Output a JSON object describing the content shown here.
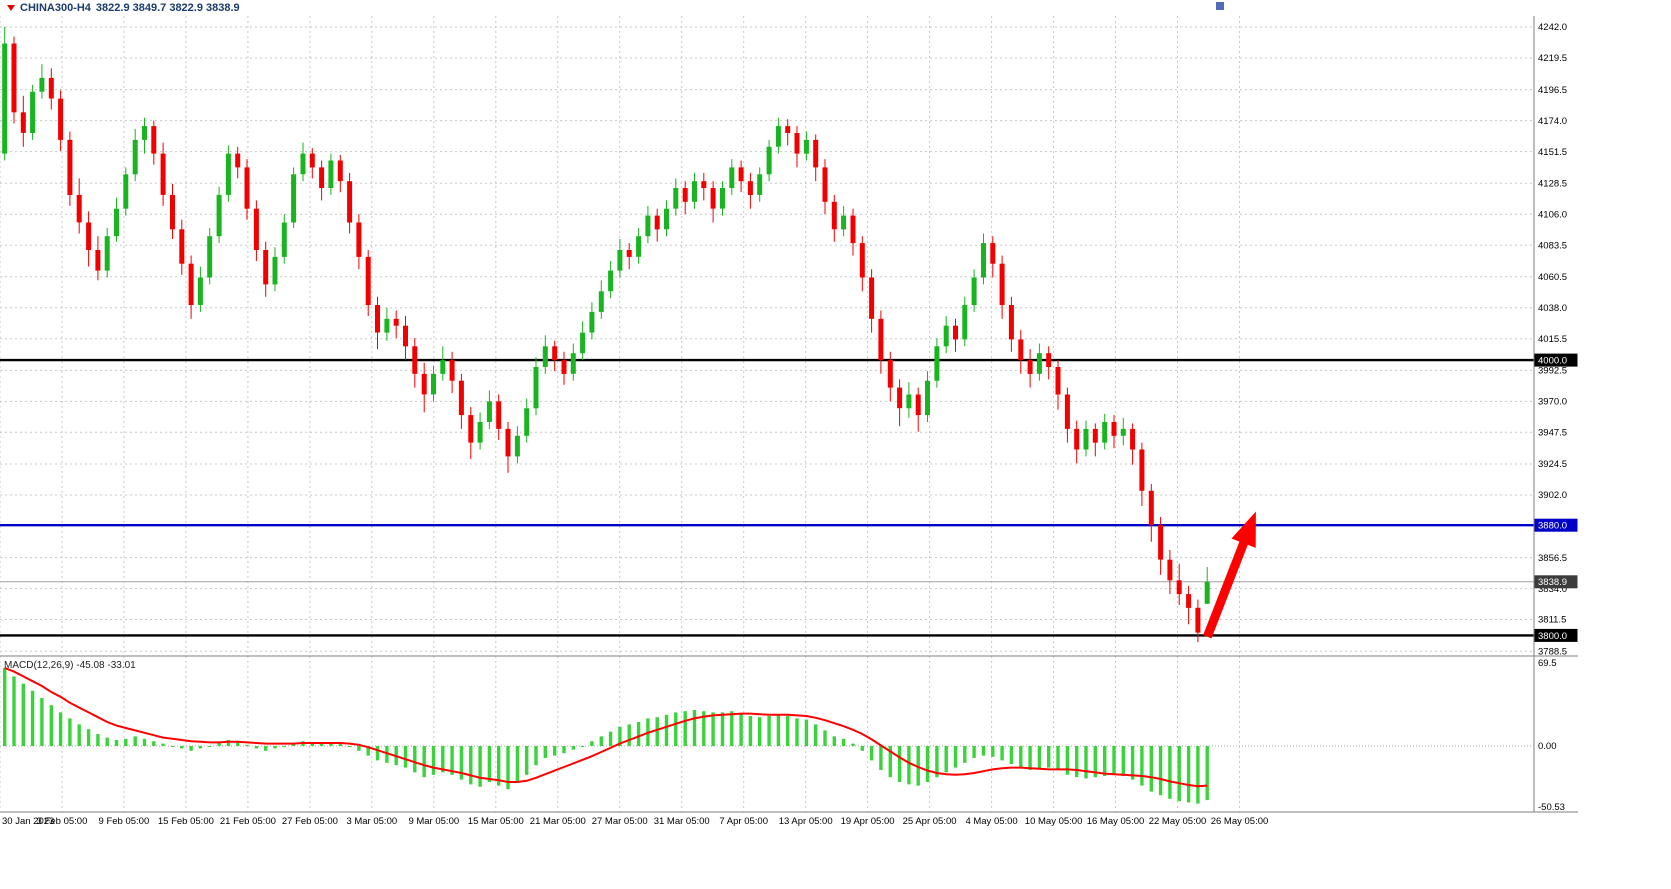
{
  "window": {
    "symbol_period": "CHINA300-H4",
    "ohlc_text": "3822.9 3849.7 3822.9 3838.9"
  },
  "chart_data": {
    "type": "candlestick",
    "title": "CHINA300-H4",
    "timeframe": "H4",
    "current_bar": {
      "open": 3822.9,
      "high": 3849.7,
      "low": 3822.9,
      "close": 3838.9
    },
    "layout_hints": {
      "grid": "dashed",
      "candle_area_frac": 0.79,
      "time_axis_frac": 0.808,
      "legend": "none"
    },
    "colors": {
      "up": "#18b520",
      "down": "#f20000",
      "grid": "#c8c8c8",
      "separator": "#7f7f7f",
      "hist": "#3bd33b",
      "signal": "#ff0000",
      "axis_text": "#000000",
      "badge_text": "#ffffff",
      "support_resistance": "#000000",
      "target_line": "#0000c8",
      "arrow": "#ff0000"
    },
    "price_axis": {
      "view_max": 4250,
      "view_min": 3785,
      "ticks": [
        4242.0,
        4219.5,
        4196.5,
        4174.0,
        4151.5,
        4128.5,
        4106.0,
        4083.5,
        4060.5,
        4038.0,
        4015.5,
        3992.5,
        3970.0,
        3947.5,
        3924.5,
        3902.0,
        3856.5,
        3834.0,
        3811.5,
        3788.5
      ]
    },
    "hlines": [
      {
        "price": 4000.0,
        "label": "4000.0",
        "color": "#000000",
        "badge_bg": "#000000"
      },
      {
        "price": 3880.0,
        "label": "3880.0",
        "color": "#0000c8",
        "badge_bg": "#0000c8"
      },
      {
        "price": 3800.0,
        "label": "3800.0",
        "color": "#000000",
        "badge_bg": "#000000"
      }
    ],
    "current_price_line": {
      "price": 3838.9,
      "label": "3838.9",
      "line_color": "#a0a0a0",
      "badge_bg": "#3c3c3c"
    },
    "arrow": {
      "from_x_frac": 0.787,
      "from_price": 3799,
      "to_x_frac": 0.8187,
      "to_price": 3890,
      "color": "#ff0000",
      "shaft_half_width": 4.5,
      "head_half_width": 13,
      "head_length": 34
    },
    "x_ticks": [
      "30 Jan 2023",
      "3 Feb 05:00",
      "9 Feb 05:00",
      "15 Feb 05:00",
      "21 Feb 05:00",
      "27 Feb 05:00",
      "3 Mar 05:00",
      "9 Mar 05:00",
      "15 Mar 05:00",
      "21 Mar 05:00",
      "27 Mar 05:00",
      "31 Mar 05:00",
      "7 Apr 05:00",
      "13 Apr 05:00",
      "19 Apr 05:00",
      "25 Apr 05:00",
      "4 May 05:00",
      "10 May 05:00",
      "16 May 05:00",
      "22 May 05:00",
      "26 May 05:00"
    ],
    "candles": [
      [
        4150,
        4242,
        4145,
        4230
      ],
      [
        4230,
        4235,
        4172,
        4180
      ],
      [
        4180,
        4192,
        4155,
        4165
      ],
      [
        4165,
        4200,
        4160,
        4195
      ],
      [
        4195,
        4215,
        4190,
        4205
      ],
      [
        4205,
        4212,
        4182,
        4190
      ],
      [
        4190,
        4196,
        4152,
        4160
      ],
      [
        4160,
        4166,
        4112,
        4120
      ],
      [
        4120,
        4132,
        4092,
        4100
      ],
      [
        4100,
        4108,
        4068,
        4080
      ],
      [
        4080,
        4090,
        4058,
        4065
      ],
      [
        4065,
        4096,
        4060,
        4090
      ],
      [
        4090,
        4118,
        4086,
        4110
      ],
      [
        4110,
        4140,
        4105,
        4135
      ],
      [
        4135,
        4168,
        4130,
        4160
      ],
      [
        4160,
        4176,
        4150,
        4170
      ],
      [
        4170,
        4174,
        4142,
        4150
      ],
      [
        4150,
        4158,
        4112,
        4120
      ],
      [
        4120,
        4128,
        4088,
        4095
      ],
      [
        4095,
        4102,
        4062,
        4070
      ],
      [
        4070,
        4076,
        4030,
        4040
      ],
      [
        4040,
        4068,
        4035,
        4060
      ],
      [
        4060,
        4096,
        4055,
        4090
      ],
      [
        4090,
        4126,
        4085,
        4120
      ],
      [
        4120,
        4156,
        4115,
        4150
      ],
      [
        4150,
        4155,
        4132,
        4140
      ],
      [
        4140,
        4146,
        4102,
        4110
      ],
      [
        4110,
        4116,
        4072,
        4080
      ],
      [
        4080,
        4086,
        4046,
        4055
      ],
      [
        4055,
        4082,
        4050,
        4075
      ],
      [
        4075,
        4106,
        4070,
        4100
      ],
      [
        4100,
        4140,
        4096,
        4135
      ],
      [
        4135,
        4158,
        4130,
        4150
      ],
      [
        4150,
        4154,
        4132,
        4140
      ],
      [
        4140,
        4145,
        4116,
        4125
      ],
      [
        4125,
        4150,
        4120,
        4145
      ],
      [
        4145,
        4149,
        4122,
        4130
      ],
      [
        4130,
        4136,
        4092,
        4100
      ],
      [
        4100,
        4106,
        4066,
        4075
      ],
      [
        4075,
        4080,
        4032,
        4040
      ],
      [
        4040,
        4046,
        4008,
        4020
      ],
      [
        4020,
        4038,
        4014,
        4030
      ],
      [
        4030,
        4036,
        4016,
        4025
      ],
      [
        4025,
        4032,
        4000,
        4010
      ],
      [
        4010,
        4016,
        3980,
        3990
      ],
      [
        3990,
        3998,
        3962,
        3975
      ],
      [
        3975,
        3996,
        3970,
        3990
      ],
      [
        3990,
        4010,
        3985,
        4000
      ],
      [
        4000,
        4006,
        3976,
        3985
      ],
      [
        3985,
        3990,
        3950,
        3960
      ],
      [
        3960,
        3966,
        3928,
        3940
      ],
      [
        3940,
        3962,
        3935,
        3955
      ],
      [
        3955,
        3978,
        3950,
        3970
      ],
      [
        3970,
        3975,
        3942,
        3950
      ],
      [
        3950,
        3955,
        3918,
        3930
      ],
      [
        3930,
        3952,
        3925,
        3945
      ],
      [
        3945,
        3972,
        3940,
        3965
      ],
      [
        3965,
        4002,
        3960,
        3995
      ],
      [
        3995,
        4018,
        3990,
        4010
      ],
      [
        4010,
        4014,
        3992,
        4000
      ],
      [
        4000,
        4006,
        3982,
        3990
      ],
      [
        3990,
        4012,
        3985,
        4005
      ],
      [
        4005,
        4028,
        4000,
        4020
      ],
      [
        4020,
        4042,
        4015,
        4035
      ],
      [
        4035,
        4058,
        4030,
        4050
      ],
      [
        4050,
        4072,
        4045,
        4065
      ],
      [
        4065,
        4088,
        4060,
        4080
      ],
      [
        4080,
        4085,
        4066,
        4075
      ],
      [
        4075,
        4096,
        4070,
        4090
      ],
      [
        4090,
        4112,
        4085,
        4105
      ],
      [
        4105,
        4110,
        4086,
        4095
      ],
      [
        4095,
        4116,
        4090,
        4110
      ],
      [
        4110,
        4132,
        4105,
        4125
      ],
      [
        4125,
        4130,
        4106,
        4115
      ],
      [
        4115,
        4136,
        4110,
        4130
      ],
      [
        4130,
        4136,
        4116,
        4125
      ],
      [
        4125,
        4130,
        4100,
        4110
      ],
      [
        4110,
        4130,
        4105,
        4125
      ],
      [
        4125,
        4146,
        4120,
        4140
      ],
      [
        4140,
        4145,
        4122,
        4130
      ],
      [
        4130,
        4136,
        4110,
        4120
      ],
      [
        4120,
        4140,
        4115,
        4135
      ],
      [
        4135,
        4160,
        4130,
        4155
      ],
      [
        4155,
        4176,
        4150,
        4170
      ],
      [
        4170,
        4175,
        4156,
        4165
      ],
      [
        4165,
        4170,
        4140,
        4150
      ],
      [
        4150,
        4166,
        4145,
        4160
      ],
      [
        4160,
        4164,
        4130,
        4140
      ],
      [
        4140,
        4146,
        4106,
        4115
      ],
      [
        4115,
        4120,
        4086,
        4095
      ],
      [
        4095,
        4112,
        4090,
        4105
      ],
      [
        4105,
        4110,
        4076,
        4085
      ],
      [
        4085,
        4090,
        4050,
        4060
      ],
      [
        4060,
        4066,
        4020,
        4030
      ],
      [
        4030,
        4036,
        3990,
        4000
      ],
      [
        4000,
        4006,
        3970,
        3980
      ],
      [
        3980,
        3986,
        3952,
        3965
      ],
      [
        3965,
        3984,
        3958,
        3975
      ],
      [
        3975,
        3980,
        3948,
        3960
      ],
      [
        3960,
        3992,
        3955,
        3985
      ],
      [
        3985,
        4016,
        3980,
        4010
      ],
      [
        4010,
        4032,
        4005,
        4025
      ],
      [
        4025,
        4030,
        4006,
        4015
      ],
      [
        4015,
        4046,
        4010,
        4040
      ],
      [
        4040,
        4066,
        4035,
        4060
      ],
      [
        4060,
        4092,
        4055,
        4085
      ],
      [
        4085,
        4090,
        4060,
        4070
      ],
      [
        4070,
        4076,
        4030,
        4040
      ],
      [
        4040,
        4046,
        4006,
        4015
      ],
      [
        4015,
        4022,
        3990,
        4000
      ],
      [
        4000,
        4008,
        3980,
        3990
      ],
      [
        3990,
        4012,
        3985,
        4005
      ],
      [
        4005,
        4010,
        3986,
        3995
      ],
      [
        3995,
        4000,
        3964,
        3975
      ],
      [
        3975,
        3980,
        3940,
        3950
      ],
      [
        3950,
        3956,
        3925,
        3935
      ],
      [
        3935,
        3956,
        3930,
        3950
      ],
      [
        3950,
        3954,
        3930,
        3940
      ],
      [
        3940,
        3961,
        3935,
        3955
      ],
      [
        3955,
        3960,
        3936,
        3945
      ],
      [
        3945,
        3958,
        3938,
        3950
      ],
      [
        3950,
        3954,
        3924,
        3935
      ],
      [
        3935,
        3940,
        3894,
        3905
      ],
      [
        3905,
        3910,
        3868,
        3880
      ],
      [
        3880,
        3886,
        3844,
        3855
      ],
      [
        3855,
        3862,
        3830,
        3840
      ],
      [
        3840,
        3852,
        3822,
        3830
      ],
      [
        3830,
        3836,
        3808,
        3820
      ],
      [
        3820,
        3826,
        3795,
        3802
      ],
      [
        3822.9,
        3849.7,
        3822.9,
        3838.9
      ]
    ],
    "macd": {
      "name": "MACD(12,26,9)",
      "macd_value": "-45.08",
      "signal_value": "-33.01",
      "view_max": 75,
      "view_min": -55,
      "axis_labels": [
        {
          "value": 69.5,
          "label": "69.5"
        },
        {
          "value": 0,
          "label": "0.00"
        },
        {
          "value": -50.53,
          "label": "-50.53"
        }
      ],
      "histogram": [
        65,
        58,
        52,
        46,
        40,
        34,
        28,
        23,
        18,
        14,
        10,
        7,
        5,
        6,
        8,
        6,
        4,
        2,
        0,
        -2,
        -4,
        -2,
        0,
        3,
        5,
        3,
        1,
        -2,
        -4,
        -2,
        0,
        2,
        4,
        3,
        2,
        3,
        2,
        0,
        -4,
        -8,
        -12,
        -14,
        -16,
        -18,
        -22,
        -26,
        -24,
        -22,
        -24,
        -28,
        -32,
        -34,
        -30,
        -33,
        -36,
        -30,
        -24,
        -16,
        -10,
        -8,
        -6,
        -3,
        0,
        4,
        8,
        12,
        16,
        18,
        20,
        23,
        24,
        26,
        28,
        29,
        30,
        29,
        28,
        28,
        29,
        27,
        25,
        24,
        25,
        26,
        25,
        23,
        22,
        18,
        13,
        8,
        6,
        2,
        -4,
        -12,
        -20,
        -26,
        -30,
        -32,
        -33,
        -30,
        -26,
        -22,
        -18,
        -14,
        -10,
        -8,
        -9,
        -12,
        -15,
        -18,
        -20,
        -19,
        -18,
        -20,
        -24,
        -26,
        -27,
        -26,
        -25,
        -24,
        -25,
        -28,
        -33,
        -38,
        -41,
        -44,
        -46,
        -47,
        -48,
        -45.08
      ],
      "signal": [
        65,
        62,
        58,
        54,
        50,
        45,
        41,
        36,
        32,
        28,
        24,
        20,
        17,
        15,
        13,
        11,
        9,
        7,
        6,
        5,
        4,
        3.5,
        3,
        3,
        3.5,
        3.5,
        3,
        2.5,
        2,
        2,
        2,
        2,
        2.5,
        2.5,
        2.5,
        2.5,
        2.5,
        2,
        1,
        -1,
        -3.5,
        -6,
        -8.5,
        -11,
        -13.5,
        -16,
        -18,
        -19.5,
        -21,
        -22.5,
        -24.5,
        -26.5,
        -27.5,
        -28.5,
        -30,
        -30,
        -29,
        -26.5,
        -23.5,
        -20.5,
        -17.5,
        -14.5,
        -11.5,
        -8.5,
        -5,
        -1.5,
        2,
        5,
        8,
        11,
        13.5,
        16,
        18.5,
        21,
        23,
        24.5,
        25.5,
        26,
        26.5,
        27,
        27,
        26.5,
        26,
        26,
        26,
        25.5,
        25,
        23.5,
        21.5,
        19,
        16.5,
        13.5,
        10,
        5.5,
        0.5,
        -4.5,
        -9.5,
        -14,
        -17.5,
        -20.5,
        -22.5,
        -23.5,
        -24,
        -23.5,
        -22.5,
        -21,
        -19.5,
        -18.5,
        -18,
        -18,
        -18.5,
        -19,
        -19.5,
        -19.5,
        -19.5,
        -20,
        -21,
        -22,
        -23,
        -23.5,
        -24,
        -24.5,
        -25,
        -26,
        -27.5,
        -29.5,
        -31,
        -32.5,
        -33.5,
        -33.01
      ]
    }
  }
}
